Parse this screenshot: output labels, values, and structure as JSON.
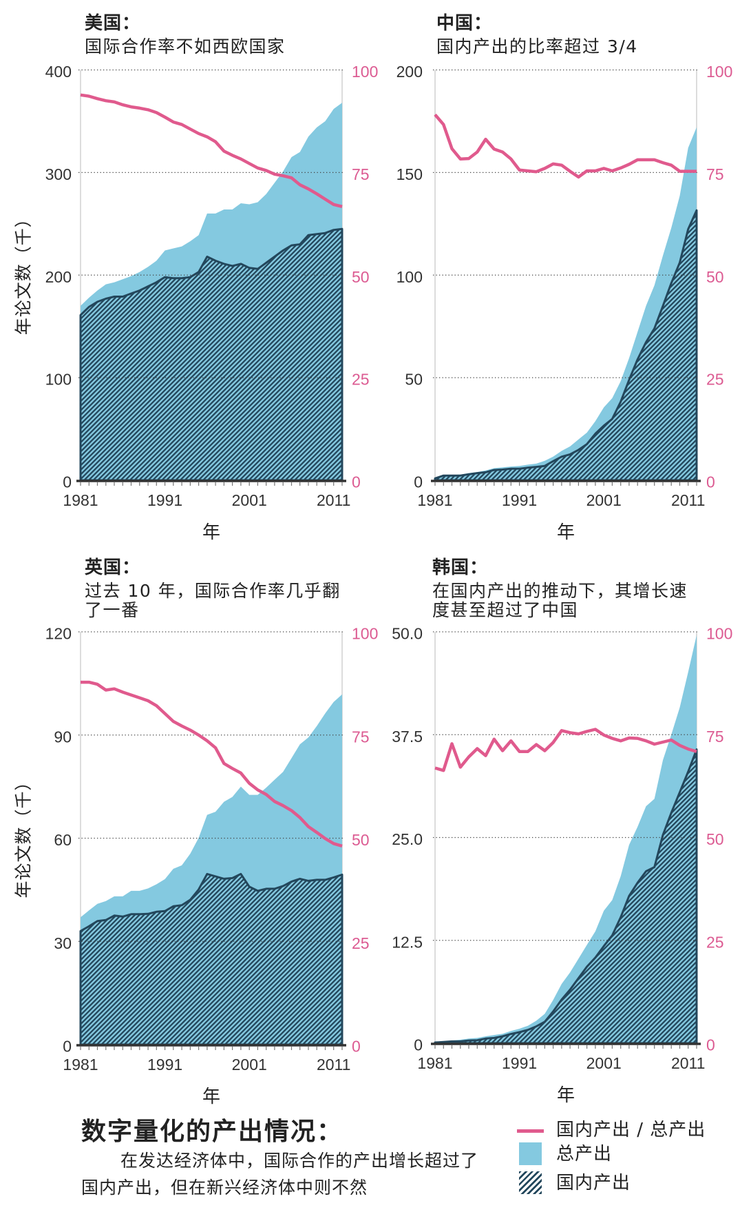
{
  "colors": {
    "total": "#84c9e0",
    "domestic": "#23475c",
    "ratio": "#e05a8d",
    "ratio_text": "#dc5b92",
    "axis": "#333333"
  },
  "legend": {
    "items": [
      {
        "label": "国内产出 / 总产出",
        "swatch": "line"
      },
      {
        "label": "总产出",
        "swatch": "fill"
      },
      {
        "label": "国内产出",
        "swatch": "hatch"
      }
    ]
  },
  "footer": {
    "title": "数字量化的产出情况：",
    "body_line1": "在发达经济体中，国际合作的产出增长超过了",
    "body_line2": "国内产出，但在新兴经济体中则不然"
  },
  "chart_data": [
    {
      "type": "area",
      "title": "美国：",
      "subtitle": [
        "国际合作率不如西欧国家"
      ],
      "xlabel": "年",
      "ylabel": "年论文数（千）",
      "x": [
        1981,
        1982,
        1983,
        1984,
        1985,
        1986,
        1987,
        1988,
        1989,
        1990,
        1991,
        1992,
        1993,
        1994,
        1995,
        1996,
        1997,
        1998,
        1999,
        2000,
        2001,
        2002,
        2003,
        2004,
        2005,
        2006,
        2007,
        2008,
        2009,
        2010,
        2011,
        2012
      ],
      "x_ticks": [
        1981,
        1991,
        2001,
        2011
      ],
      "ylim": [
        0,
        400
      ],
      "y_ticks": [
        0,
        100,
        200,
        300,
        400
      ],
      "y_tick_labels": [
        "0",
        "100",
        "200",
        "300",
        "400"
      ],
      "y2lim": [
        0,
        100
      ],
      "y2_ticks": [
        0,
        25,
        50,
        75,
        100
      ],
      "y2_tick_labels": [
        "0",
        "25",
        "50",
        "75",
        "100"
      ],
      "grid": true,
      "series": [
        {
          "name": "总产出",
          "kind": "area",
          "values": [
            170,
            178,
            185,
            191,
            193,
            196,
            199,
            203,
            208,
            214,
            224,
            226,
            228,
            233,
            239,
            260,
            260,
            264,
            264,
            270,
            269,
            271,
            279,
            290,
            301,
            315,
            320,
            335,
            344,
            350,
            362,
            368
          ]
        },
        {
          "name": "国内产出",
          "kind": "hatched-area",
          "values": [
            161,
            169,
            174,
            177,
            179,
            179,
            182,
            185,
            189,
            193,
            198,
            197,
            197,
            198,
            203,
            218,
            214,
            211,
            209,
            211,
            207,
            206,
            212,
            218,
            224,
            229,
            230,
            239,
            240,
            241,
            244,
            245
          ]
        },
        {
          "name": "国内产出 / 总产出",
          "kind": "line",
          "axis": "right",
          "values": [
            93.9,
            93.6,
            93.0,
            92.5,
            92.2,
            91.5,
            91.0,
            90.7,
            90.3,
            89.6,
            88.5,
            87.3,
            86.7,
            85.6,
            84.5,
            83.7,
            82.5,
            80.2,
            79.2,
            78.3,
            77.2,
            76.1,
            75.5,
            74.6,
            74.2,
            73.7,
            72.0,
            71.0,
            69.8,
            68.5,
            67.2,
            66.7
          ]
        }
      ]
    },
    {
      "type": "area",
      "title": "中国：",
      "subtitle": [
        "国内产出的比率超过 3/4"
      ],
      "xlabel": "年",
      "ylabel": "",
      "x": [
        1981,
        1982,
        1983,
        1984,
        1985,
        1986,
        1987,
        1988,
        1989,
        1990,
        1991,
        1992,
        1993,
        1994,
        1995,
        1996,
        1997,
        1998,
        1999,
        2000,
        2001,
        2002,
        2003,
        2004,
        2005,
        2006,
        2007,
        2008,
        2009,
        2010,
        2011,
        2012
      ],
      "x_ticks": [
        1981,
        1991,
        2001,
        2011
      ],
      "ylim": [
        0,
        200
      ],
      "y_ticks": [
        0,
        50,
        100,
        150,
        200
      ],
      "y_tick_labels": [
        "0",
        "50",
        "100",
        "150",
        "200"
      ],
      "y2lim": [
        0,
        100
      ],
      "y2_ticks": [
        0,
        25,
        50,
        75,
        100
      ],
      "y2_tick_labels": [
        "0",
        "25",
        "50",
        "75",
        "100"
      ],
      "grid": true,
      "series": [
        {
          "name": "总产出",
          "kind": "area",
          "values": [
            1.1,
            2.6,
            2.6,
            2.8,
            3.5,
            4.0,
            4.8,
            5.9,
            6.3,
            6.7,
            7.0,
            7.6,
            8.1,
            9.5,
            11.5,
            14.3,
            16.5,
            19.9,
            23.2,
            28.8,
            35.5,
            40.0,
            48.3,
            59.5,
            72.3,
            85.0,
            95.0,
            109.5,
            123.0,
            138.6,
            162.0,
            172.1
          ]
        },
        {
          "name": "国内产出",
          "kind": "hatched-area",
          "values": [
            0.9,
            2.3,
            2.3,
            2.3,
            2.9,
            3.5,
            3.9,
            5.0,
            5.2,
            5.6,
            5.6,
            6.1,
            6.5,
            7.0,
            9.3,
            11.5,
            12.6,
            14.8,
            17.6,
            22.7,
            26.6,
            29.9,
            38.3,
            48.9,
            58.9,
            67.3,
            74.0,
            84.9,
            96.1,
            106.1,
            122.4,
            131.6
          ]
        },
        {
          "name": "国内产出 / 总产出",
          "kind": "line",
          "axis": "right",
          "values": [
            89.1,
            86.7,
            80.8,
            78.3,
            78.4,
            80.0,
            83.1,
            80.7,
            80.0,
            78.3,
            75.6,
            75.4,
            75.2,
            76.0,
            77.1,
            76.8,
            75.3,
            73.9,
            75.4,
            75.4,
            76.0,
            75.4,
            76.1,
            77.0,
            78.1,
            78.1,
            78.1,
            77.4,
            76.8,
            75.3,
            75.3,
            75.3
          ]
        }
      ]
    },
    {
      "type": "area",
      "title": "英国：",
      "subtitle": [
        "过去 10 年，国际合作率几乎翻",
        "了一番"
      ],
      "xlabel": "年",
      "ylabel": "年论文数（千）",
      "x": [
        1981,
        1982,
        1983,
        1984,
        1985,
        1986,
        1987,
        1988,
        1989,
        1990,
        1991,
        1992,
        1993,
        1994,
        1995,
        1996,
        1997,
        1998,
        1999,
        2000,
        2001,
        2002,
        2003,
        2004,
        2005,
        2006,
        2007,
        2008,
        2009,
        2010,
        2011,
        2012
      ],
      "x_ticks": [
        1981,
        1991,
        2001,
        2011
      ],
      "ylim": [
        0,
        120
      ],
      "y_ticks": [
        0,
        30,
        60,
        90,
        120
      ],
      "y_tick_labels": [
        "0",
        "30",
        "60",
        "90",
        "120"
      ],
      "y2lim": [
        0,
        100
      ],
      "y2_ticks": [
        0,
        25,
        50,
        75,
        100
      ],
      "y2_tick_labels": [
        "0",
        "25",
        "50",
        "75",
        "100"
      ],
      "grid": true,
      "series": [
        {
          "name": "总产出",
          "kind": "area",
          "values": [
            37.0,
            39.0,
            40.9,
            41.7,
            43.1,
            43.1,
            44.7,
            44.7,
            45.4,
            46.6,
            48.1,
            51.1,
            52.1,
            55.5,
            60.1,
            66.8,
            67.7,
            70.6,
            72.0,
            75.0,
            72.6,
            72.6,
            74.7,
            77.0,
            79.3,
            83.3,
            87.3,
            89.3,
            92.6,
            96.3,
            99.6,
            101.8
          ]
        },
        {
          "name": "国内产出",
          "kind": "hatched-area",
          "values": [
            33.0,
            34.4,
            35.9,
            36.2,
            37.5,
            37.2,
            37.9,
            37.9,
            38.0,
            38.6,
            38.8,
            40.2,
            40.5,
            42.1,
            45.1,
            49.6,
            48.9,
            48.2,
            48.4,
            49.6,
            45.9,
            44.7,
            45.3,
            45.3,
            46.1,
            47.4,
            48.2,
            47.6,
            47.9,
            47.9,
            48.6,
            49.4
          ]
        },
        {
          "name": "国内产出 / 总产出",
          "kind": "line",
          "axis": "right",
          "values": [
            87.8,
            87.8,
            87.3,
            85.9,
            86.2,
            85.4,
            84.7,
            84.0,
            83.3,
            82.1,
            80.2,
            78.3,
            77.2,
            76.2,
            75.0,
            73.6,
            71.9,
            68.1,
            66.9,
            65.8,
            63.3,
            61.7,
            60.6,
            58.9,
            57.9,
            56.7,
            55.0,
            52.8,
            51.4,
            49.9,
            48.7,
            48.1
          ]
        }
      ]
    },
    {
      "type": "area",
      "title": "韩国：",
      "subtitle": [
        "在国内产出的推动下，其增长速",
        "度甚至超过了中国"
      ],
      "xlabel": "年",
      "ylabel": "",
      "x": [
        1981,
        1982,
        1983,
        1984,
        1985,
        1986,
        1987,
        1988,
        1989,
        1990,
        1991,
        1992,
        1993,
        1994,
        1995,
        1996,
        1997,
        1998,
        1999,
        2000,
        2001,
        2002,
        2003,
        2004,
        2005,
        2006,
        2007,
        2008,
        2009,
        2010,
        2011,
        2012
      ],
      "x_ticks": [
        1981,
        1991,
        2001,
        2011
      ],
      "ylim": [
        0,
        50
      ],
      "y_ticks": [
        0,
        12.5,
        25,
        37.5,
        50
      ],
      "y_tick_labels": [
        "0",
        "12.5",
        "25.0",
        "37.5",
        "50.0"
      ],
      "y2lim": [
        0,
        100
      ],
      "y2_ticks": [
        0,
        25,
        50,
        75,
        100
      ],
      "y2_tick_labels": [
        "0",
        "25",
        "50",
        "75",
        "100"
      ],
      "grid": true,
      "series": [
        {
          "name": "总产出",
          "kind": "area",
          "values": [
            0.14,
            0.22,
            0.33,
            0.42,
            0.56,
            0.64,
            0.84,
            1.0,
            1.14,
            1.48,
            1.76,
            2.12,
            2.73,
            3.57,
            5.25,
            7.2,
            8.59,
            10.27,
            11.94,
            13.6,
            16.1,
            17.4,
            20.3,
            24.1,
            26.3,
            28.8,
            29.7,
            34.4,
            37.5,
            40.8,
            45.1,
            49.6
          ]
        },
        {
          "name": "国内产出",
          "kind": "hatched-area",
          "values": [
            0.08,
            0.14,
            0.22,
            0.22,
            0.33,
            0.36,
            0.56,
            0.64,
            0.84,
            1.12,
            1.34,
            1.62,
            2.04,
            2.6,
            3.85,
            5.3,
            6.5,
            7.9,
            9.3,
            10.4,
            11.8,
            13.1,
            15.3,
            17.9,
            19.5,
            20.9,
            21.4,
            25.3,
            28.0,
            30.5,
            33.0,
            35.7
          ]
        },
        {
          "name": "国内产出 / 总产出",
          "kind": "line",
          "axis": "right",
          "values": [
            66.9,
            66.3,
            72.8,
            67.1,
            69.6,
            71.6,
            69.9,
            73.9,
            71.1,
            73.5,
            70.9,
            70.9,
            72.6,
            71.1,
            73.1,
            76.0,
            75.5,
            75.2,
            75.8,
            76.3,
            74.9,
            74.1,
            73.5,
            74.2,
            74.1,
            73.5,
            72.7,
            73.2,
            73.7,
            72.4,
            71.5,
            70.9
          ]
        }
      ]
    }
  ]
}
